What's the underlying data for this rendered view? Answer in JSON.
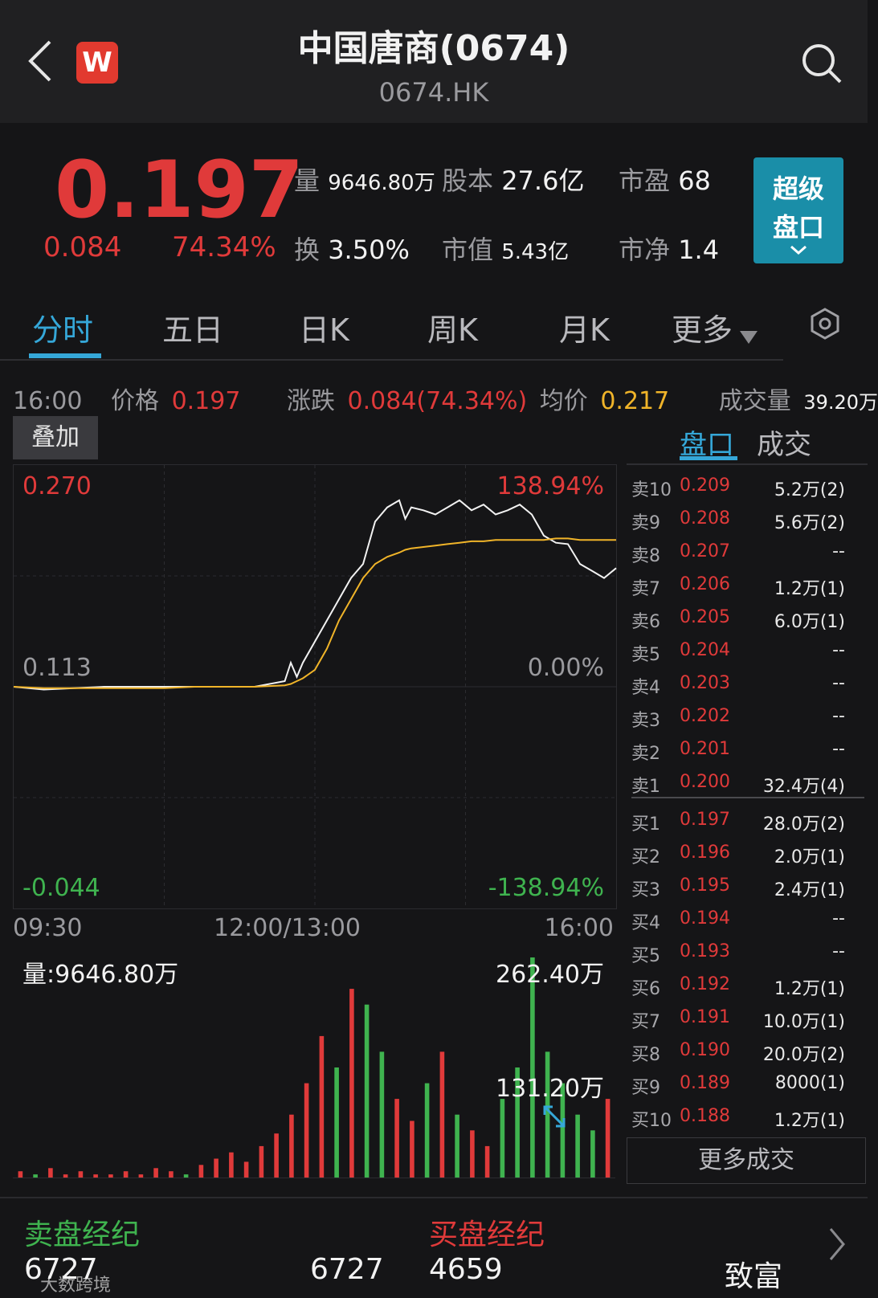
{
  "header": {
    "title": "中国唐商(0674)",
    "subtitle": "0674.HK",
    "brand_letter": "W"
  },
  "quote": {
    "price": "0.197",
    "change": "0.084",
    "change_pct": "74.34%",
    "stats": [
      {
        "label": "量",
        "value": "9646.80万"
      },
      {
        "label": "股本",
        "value": "27.6亿"
      },
      {
        "label": "市盈",
        "value": "68"
      },
      {
        "label": "换",
        "value": "3.50%"
      },
      {
        "label": "市值",
        "value": "5.43亿"
      },
      {
        "label": "市净",
        "value": "1.4"
      }
    ],
    "super_panel": [
      "超级",
      "盘口"
    ]
  },
  "tabs": [
    "分时",
    "五日",
    "日K",
    "周K",
    "月K",
    "更多"
  ],
  "info_bar": {
    "time": "16:00",
    "price_label": "价格",
    "price": "0.197",
    "change_label": "涨跌",
    "change": "0.084(74.34%)",
    "avg_label": "均价",
    "avg": "0.217",
    "vol_label": "成交量",
    "vol": "39.20万"
  },
  "overlay_label": "叠加",
  "right_tabs": [
    "盘口",
    "成交"
  ],
  "chart_labels": {
    "top_price": "0.270",
    "top_pct": "138.94%",
    "mid_price": "0.113",
    "mid_pct": "0.00%",
    "bottom_price": "-0.044",
    "bottom_pct": "-138.94%",
    "time_start": "09:30",
    "time_mid": "12:00/13:00",
    "time_end": "16:00",
    "vol_label": "量:9646.80万",
    "vol_max": "262.40万",
    "vol_half": "131.20万"
  },
  "chart_data": {
    "type": "line",
    "ylim": [
      -0.044,
      0.27
    ],
    "base_price": 0.113,
    "x": [
      0,
      5,
      10,
      15,
      20,
      25,
      30,
      35,
      40,
      45,
      46,
      47,
      48,
      50,
      52,
      54,
      56,
      58,
      60,
      62,
      64,
      65,
      66,
      68,
      70,
      72,
      74,
      76,
      78,
      80,
      82,
      84,
      86,
      88,
      90,
      92,
      94,
      96,
      98,
      100
    ],
    "series": [
      {
        "name": "价格",
        "color": "#f2f2f2",
        "values": [
          0.113,
          0.111,
          0.112,
          0.113,
          0.113,
          0.113,
          0.113,
          0.113,
          0.113,
          0.117,
          0.13,
          0.12,
          0.13,
          0.145,
          0.16,
          0.175,
          0.19,
          0.2,
          0.23,
          0.24,
          0.245,
          0.232,
          0.24,
          0.238,
          0.235,
          0.24,
          0.245,
          0.238,
          0.242,
          0.235,
          0.238,
          0.242,
          0.235,
          0.22,
          0.215,
          0.214,
          0.2,
          0.195,
          0.19,
          0.197
        ]
      },
      {
        "name": "均价",
        "color": "#f0b429",
        "values": [
          0.113,
          0.112,
          0.112,
          0.112,
          0.112,
          0.112,
          0.113,
          0.113,
          0.113,
          0.114,
          0.115,
          0.117,
          0.119,
          0.125,
          0.14,
          0.16,
          0.175,
          0.19,
          0.2,
          0.205,
          0.208,
          0.21,
          0.211,
          0.212,
          0.213,
          0.214,
          0.215,
          0.216,
          0.216,
          0.217,
          0.217,
          0.217,
          0.217,
          0.217,
          0.218,
          0.218,
          0.217,
          0.217,
          0.217,
          0.217
        ]
      }
    ],
    "volume": [
      2,
      1,
      3,
      1,
      2,
      1,
      1,
      2,
      1,
      3,
      2,
      1,
      4,
      6,
      8,
      5,
      10,
      14,
      20,
      30,
      45,
      35,
      60,
      55,
      40,
      25,
      18,
      30,
      40,
      20,
      15,
      10,
      25,
      35,
      70,
      40,
      30,
      20,
      15,
      25
    ]
  },
  "order_book": {
    "asks": [
      {
        "label": "卖10",
        "price": "0.209",
        "vol": "5.2万(2)"
      },
      {
        "label": "卖9",
        "price": "0.208",
        "vol": "5.6万(2)"
      },
      {
        "label": "卖8",
        "price": "0.207",
        "vol": "--"
      },
      {
        "label": "卖7",
        "price": "0.206",
        "vol": "1.2万(1)"
      },
      {
        "label": "卖6",
        "price": "0.205",
        "vol": "6.0万(1)"
      },
      {
        "label": "卖5",
        "price": "0.204",
        "vol": "--"
      },
      {
        "label": "卖4",
        "price": "0.203",
        "vol": "--"
      },
      {
        "label": "卖3",
        "price": "0.202",
        "vol": "--"
      },
      {
        "label": "卖2",
        "price": "0.201",
        "vol": "--"
      },
      {
        "label": "卖1",
        "price": "0.200",
        "vol": "32.4万(4)"
      }
    ],
    "bids": [
      {
        "label": "买1",
        "price": "0.197",
        "vol": "28.0万(2)"
      },
      {
        "label": "买2",
        "price": "0.196",
        "vol": "2.0万(1)"
      },
      {
        "label": "买3",
        "price": "0.195",
        "vol": "2.4万(1)"
      },
      {
        "label": "买4",
        "price": "0.194",
        "vol": "--"
      },
      {
        "label": "买5",
        "price": "0.193",
        "vol": "--"
      },
      {
        "label": "买6",
        "price": "0.192",
        "vol": "1.2万(1)"
      },
      {
        "label": "买7",
        "price": "0.191",
        "vol": "10.0万(1)"
      },
      {
        "label": "买8",
        "price": "0.190",
        "vol": "20.0万(2)"
      },
      {
        "label": "买9",
        "price": "0.189",
        "vol": "8000(1)"
      },
      {
        "label": "买10",
        "price": "0.188",
        "vol": "1.2万(1)"
      }
    ],
    "more_button": "更多成交"
  },
  "brokers": {
    "sell_title": "卖盘经纪",
    "buy_title": "买盘经纪",
    "sell_id": "6727",
    "sell_id2": "6727",
    "buy_id": "4659",
    "buy_name": "致富"
  },
  "watermark": "大数跨境"
}
